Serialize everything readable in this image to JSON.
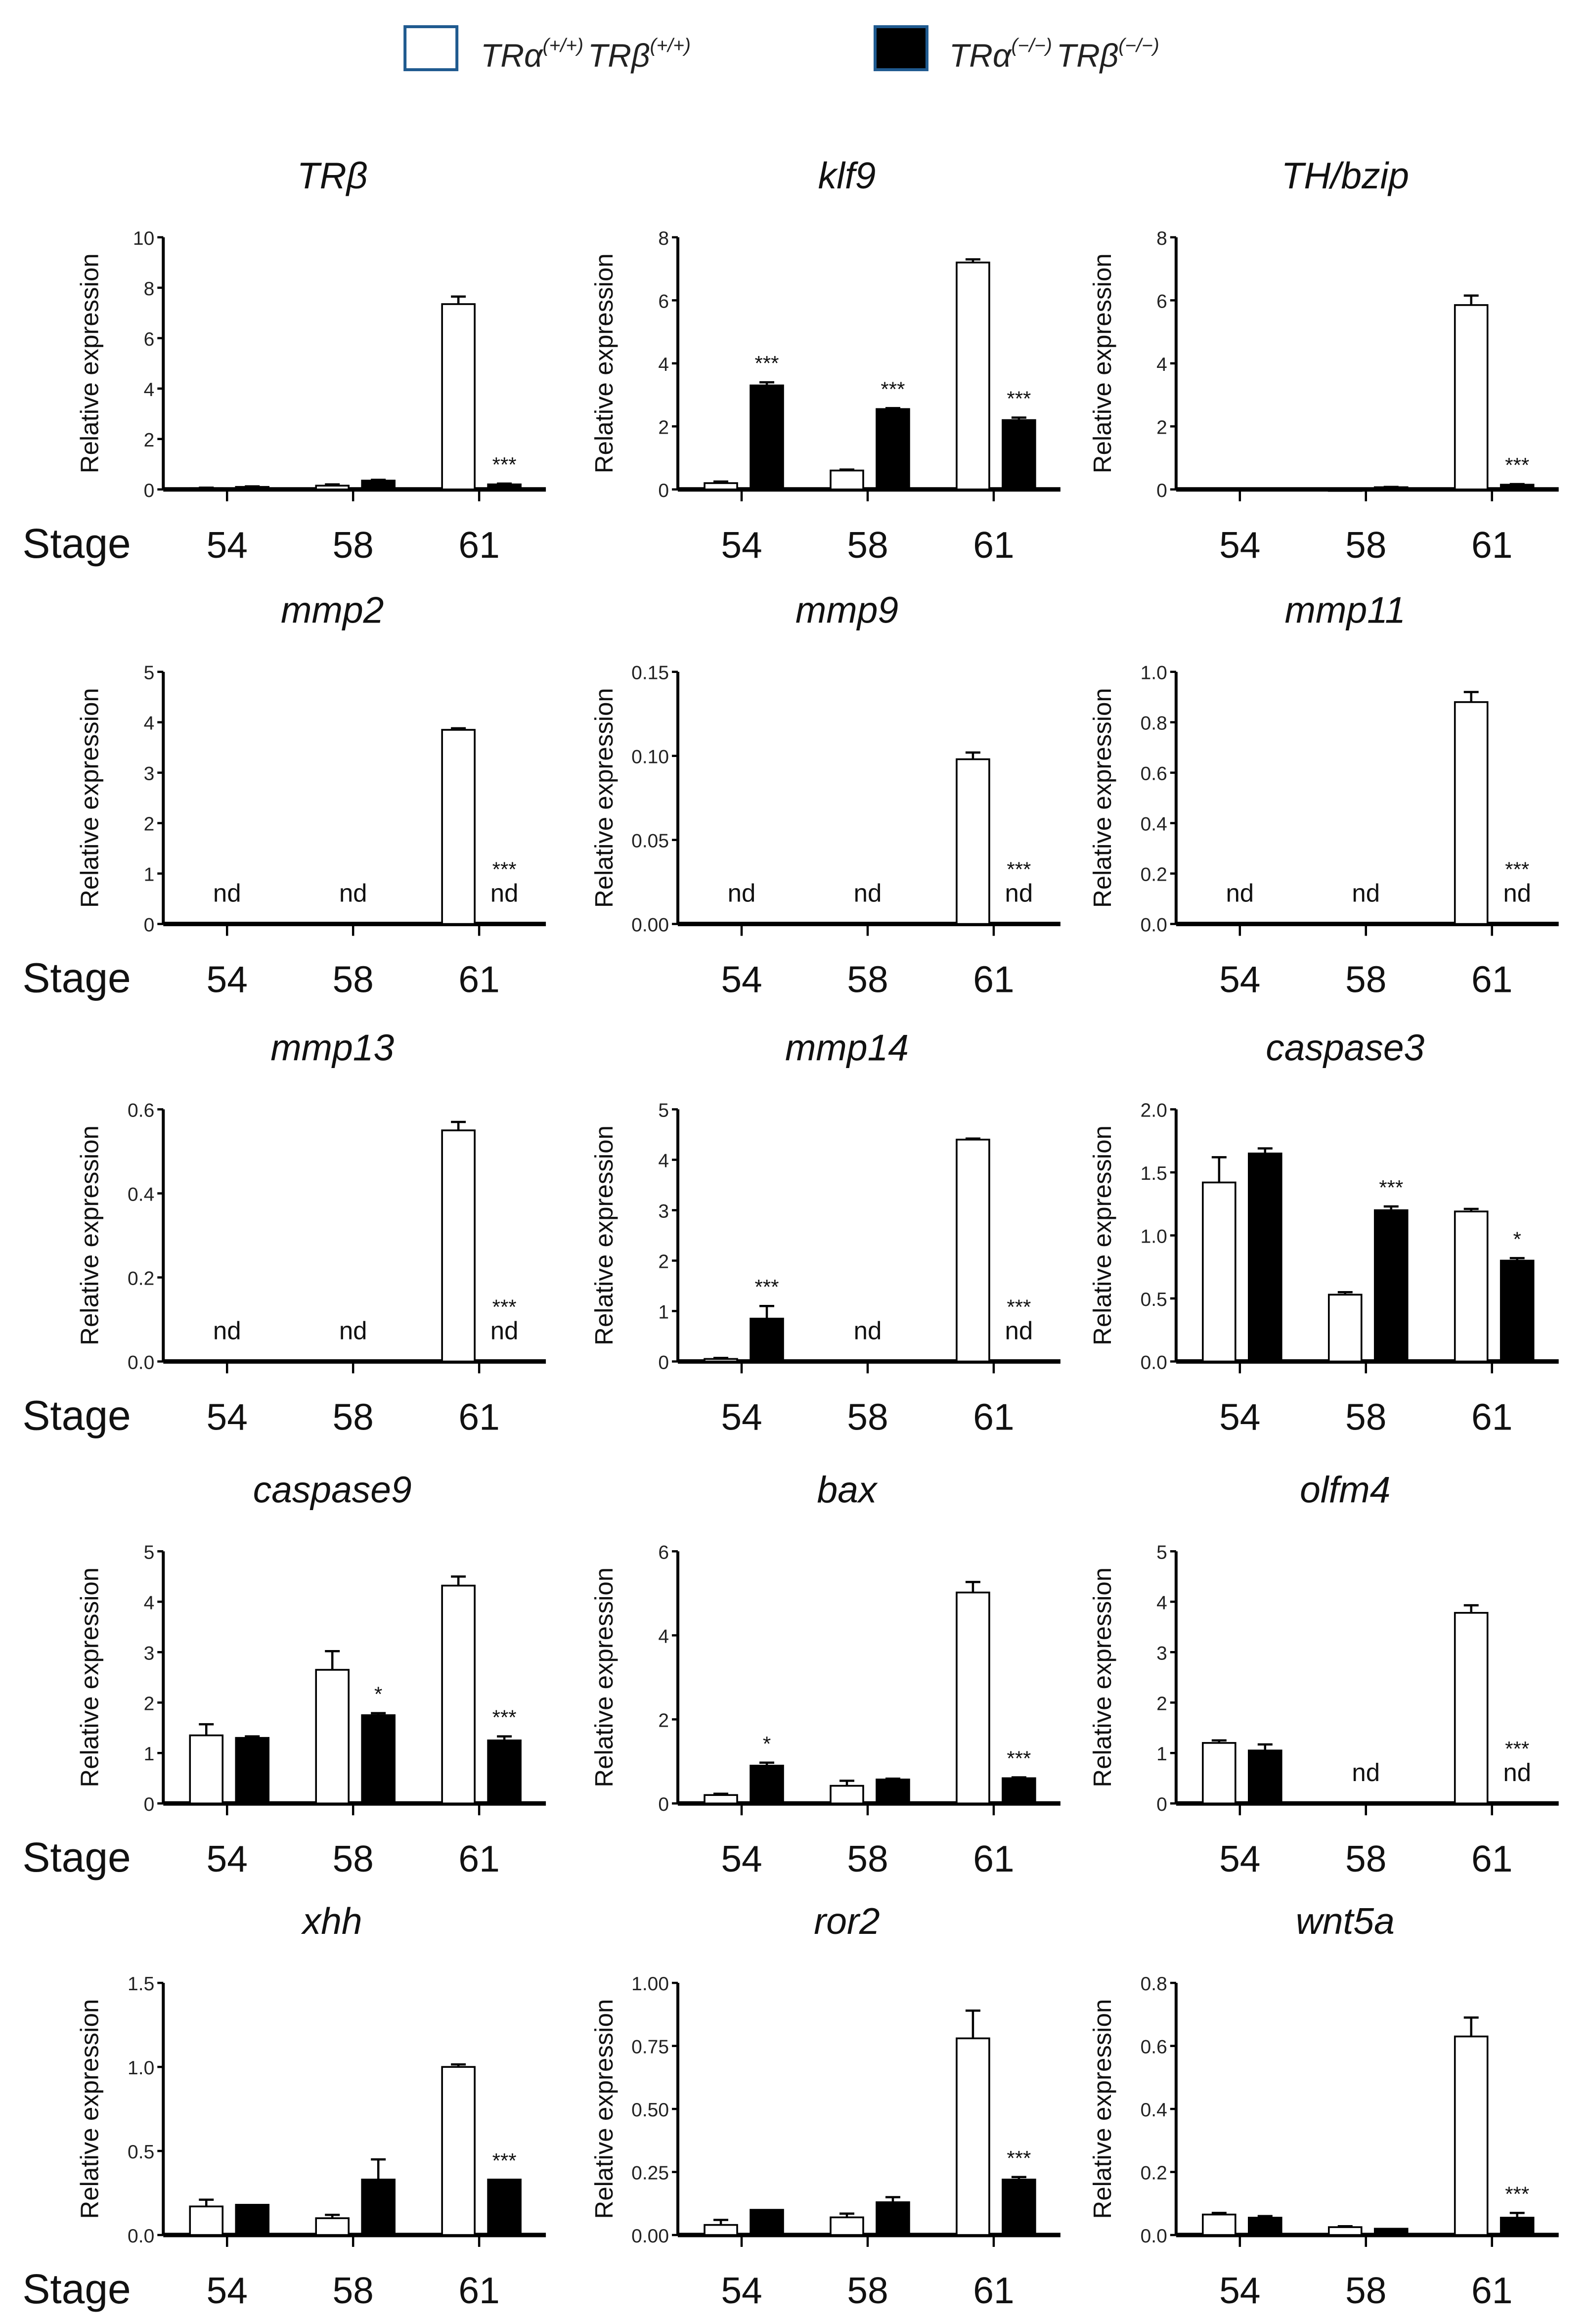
{
  "legend": [
    {
      "base1": "TRα",
      "sup1": "(+/+)",
      "base2": "TRβ",
      "sup2": "(+/+)",
      "fill": "#ffffff",
      "border": "#1f5a8f"
    },
    {
      "base1": "TRα",
      "sup1": "(−/−)",
      "base2": "TRβ",
      "sup2": "(−/−)",
      "fill": "#000000",
      "border": "#1f5a8f"
    }
  ],
  "stage_label": "Stage",
  "nd_label": "nd",
  "chart_data": [
    {
      "type": "bar",
      "title": "TRβ",
      "ylabel": "Relative expression",
      "categories": [
        "54",
        "58",
        "61"
      ],
      "ylim": [
        0,
        10
      ],
      "ticks": [
        "0",
        "2",
        "4",
        "6",
        "8",
        "10"
      ],
      "show_stage": true,
      "series": [
        {
          "name": "TRα(+/+) TRβ(+/+)",
          "values": [
            0.05,
            0.15,
            7.35
          ],
          "err": [
            0.02,
            0.05,
            0.3
          ]
        },
        {
          "name": "TRα(−/−) TRβ(−/−)",
          "values": [
            0.1,
            0.35,
            0.2
          ],
          "err": [
            0.02,
            0.03,
            0.03
          ]
        }
      ],
      "significance": [
        null,
        null,
        "***"
      ]
    },
    {
      "type": "bar",
      "title": "klf9",
      "ylabel": "Relative expression",
      "categories": [
        "54",
        "58",
        "61"
      ],
      "ylim": [
        0,
        8
      ],
      "ticks": [
        "0",
        "2",
        "4",
        "6",
        "8"
      ],
      "show_stage": false,
      "series": [
        {
          "name": "TRα(+/+) TRβ(+/+)",
          "values": [
            0.2,
            0.6,
            7.2
          ],
          "err": [
            0.05,
            0.03,
            0.1
          ]
        },
        {
          "name": "TRα(−/−) TRβ(−/−)",
          "values": [
            3.3,
            2.55,
            2.2
          ],
          "err": [
            0.1,
            0.03,
            0.08
          ]
        }
      ],
      "significance": [
        "***",
        "***",
        "***"
      ]
    },
    {
      "type": "bar",
      "title": "TH/bzip",
      "ylabel": "Relative expression",
      "categories": [
        "54",
        "58",
        "61"
      ],
      "ylim": [
        0,
        8
      ],
      "ticks": [
        "0",
        "2",
        "4",
        "6",
        "8"
      ],
      "show_stage": false,
      "series": [
        {
          "name": "TRα(+/+) TRβ(+/+)",
          "values": [
            0.02,
            0.0,
            5.85
          ],
          "err": [
            0,
            0,
            0.3
          ]
        },
        {
          "name": "TRα(−/−) TRβ(−/−)",
          "values": [
            0.02,
            0.07,
            0.15
          ],
          "err": [
            0,
            0.01,
            0.02
          ]
        }
      ],
      "significance": [
        null,
        null,
        "***"
      ]
    },
    {
      "type": "bar",
      "title": "mmp2",
      "ylabel": "Relative expression",
      "categories": [
        "54",
        "58",
        "61"
      ],
      "ylim": [
        0,
        5
      ],
      "ticks": [
        "0",
        "1",
        "2",
        "3",
        "4",
        "5"
      ],
      "show_stage": true,
      "series": [
        {
          "name": "TRα(+/+) TRβ(+/+)",
          "values": [
            null,
            null,
            3.85
          ],
          "err": [
            0,
            0,
            0.03
          ]
        },
        {
          "name": "TRα(−/−) TRβ(−/−)",
          "values": [
            null,
            null,
            null
          ],
          "err": [
            0,
            0,
            0
          ]
        }
      ],
      "significance": [
        null,
        null,
        "***"
      ]
    },
    {
      "type": "bar",
      "title": "mmp9",
      "ylabel": "Relative expression",
      "categories": [
        "54",
        "58",
        "61"
      ],
      "ylim": [
        0,
        0.15
      ],
      "ticks": [
        "0.00",
        "0.05",
        "0.10",
        "0.15"
      ],
      "show_stage": false,
      "series": [
        {
          "name": "TRα(+/+) TRβ(+/+)",
          "values": [
            null,
            null,
            0.098
          ],
          "err": [
            0,
            0,
            0.004
          ]
        },
        {
          "name": "TRα(−/−) TRβ(−/−)",
          "values": [
            null,
            null,
            null
          ],
          "err": [
            0,
            0,
            0
          ]
        }
      ],
      "significance": [
        null,
        null,
        "***"
      ]
    },
    {
      "type": "bar",
      "title": "mmp11",
      "ylabel": "Relative expression",
      "categories": [
        "54",
        "58",
        "61"
      ],
      "ylim": [
        0,
        1.0
      ],
      "ticks": [
        "0.0",
        "0.2",
        "0.4",
        "0.6",
        "0.8",
        "1.0"
      ],
      "show_stage": false,
      "series": [
        {
          "name": "TRα(+/+) TRβ(+/+)",
          "values": [
            null,
            null,
            0.88
          ],
          "err": [
            0,
            0,
            0.04
          ]
        },
        {
          "name": "TRα(−/−) TRβ(−/−)",
          "values": [
            null,
            null,
            null
          ],
          "err": [
            0,
            0,
            0
          ]
        }
      ],
      "significance": [
        null,
        null,
        "***"
      ]
    },
    {
      "type": "bar",
      "title": "mmp13",
      "ylabel": "Relative expression",
      "categories": [
        "54",
        "58",
        "61"
      ],
      "ylim": [
        0,
        0.6
      ],
      "ticks": [
        "0.0",
        "0.2",
        "0.4",
        "0.6"
      ],
      "show_stage": true,
      "series": [
        {
          "name": "TRα(+/+) TRβ(+/+)",
          "values": [
            null,
            null,
            0.55
          ],
          "err": [
            0,
            0,
            0.02
          ]
        },
        {
          "name": "TRα(−/−) TRβ(−/−)",
          "values": [
            null,
            null,
            null
          ],
          "err": [
            0,
            0,
            0
          ]
        }
      ],
      "significance": [
        null,
        null,
        "***"
      ]
    },
    {
      "type": "bar",
      "title": "mmp14",
      "ylabel": "Relative expression",
      "categories": [
        "54",
        "58",
        "61"
      ],
      "ylim": [
        0,
        5
      ],
      "ticks": [
        "0",
        "1",
        "2",
        "3",
        "4",
        "5"
      ],
      "show_stage": false,
      "series": [
        {
          "name": "TRα(+/+) TRβ(+/+)",
          "values": [
            0.05,
            null,
            4.4
          ],
          "err": [
            0.02,
            0,
            0.02
          ]
        },
        {
          "name": "TRα(−/−) TRβ(−/−)",
          "values": [
            0.85,
            null,
            null
          ],
          "err": [
            0.25,
            0,
            0
          ]
        }
      ],
      "significance": [
        "***",
        null,
        "***"
      ]
    },
    {
      "type": "bar",
      "title": "caspase3",
      "ylabel": "Relative expression",
      "categories": [
        "54",
        "58",
        "61"
      ],
      "ylim": [
        0,
        2.0
      ],
      "ticks": [
        "0.0",
        "0.5",
        "1.0",
        "1.5",
        "2.0"
      ],
      "show_stage": false,
      "series": [
        {
          "name": "TRα(+/+) TRβ(+/+)",
          "values": [
            1.42,
            0.53,
            1.19
          ],
          "err": [
            0.2,
            0.02,
            0.02
          ]
        },
        {
          "name": "TRα(−/−) TRβ(−/−)",
          "values": [
            1.65,
            1.2,
            0.8
          ],
          "err": [
            0.04,
            0.03,
            0.02
          ]
        }
      ],
      "significance": [
        null,
        "***",
        "*"
      ]
    },
    {
      "type": "bar",
      "title": "caspase9",
      "ylabel": "Relative expression",
      "categories": [
        "54",
        "58",
        "61"
      ],
      "ylim": [
        0,
        5
      ],
      "ticks": [
        "0",
        "1",
        "2",
        "3",
        "4",
        "5"
      ],
      "show_stage": true,
      "series": [
        {
          "name": "TRα(+/+) TRβ(+/+)",
          "values": [
            1.35,
            2.65,
            4.32
          ],
          "err": [
            0.22,
            0.37,
            0.18
          ]
        },
        {
          "name": "TRα(−/−) TRβ(−/−)",
          "values": [
            1.3,
            1.75,
            1.25
          ],
          "err": [
            0.03,
            0.04,
            0.08
          ]
        }
      ],
      "significance": [
        null,
        "*",
        "***"
      ]
    },
    {
      "type": "bar",
      "title": "bax",
      "ylabel": "Relative expression",
      "categories": [
        "54",
        "58",
        "61"
      ],
      "ylim": [
        0,
        6
      ],
      "ticks": [
        "0",
        "2",
        "4",
        "6"
      ],
      "show_stage": false,
      "series": [
        {
          "name": "TRα(+/+) TRβ(+/+)",
          "values": [
            0.2,
            0.42,
            5.02
          ],
          "err": [
            0.03,
            0.12,
            0.25
          ]
        },
        {
          "name": "TRα(−/−) TRβ(−/−)",
          "values": [
            0.9,
            0.57,
            0.6
          ],
          "err": [
            0.07,
            0.02,
            0.02
          ]
        }
      ],
      "significance": [
        "*",
        null,
        "***"
      ]
    },
    {
      "type": "bar",
      "title": "olfm4",
      "ylabel": "Relative expression",
      "categories": [
        "54",
        "58",
        "61"
      ],
      "ylim": [
        0,
        5
      ],
      "ticks": [
        "0",
        "1",
        "2",
        "3",
        "4",
        "5"
      ],
      "show_stage": false,
      "series": [
        {
          "name": "TRα(+/+) TRβ(+/+)",
          "values": [
            1.2,
            null,
            3.78
          ],
          "err": [
            0.05,
            0,
            0.15
          ]
        },
        {
          "name": "TRα(−/−) TRβ(−/−)",
          "values": [
            1.05,
            null,
            null
          ],
          "err": [
            0.12,
            0,
            0
          ]
        }
      ],
      "significance": [
        null,
        null,
        "***"
      ]
    },
    {
      "type": "bar",
      "title": "xhh",
      "ylabel": "Relative expression",
      "categories": [
        "54",
        "58",
        "61"
      ],
      "ylim": [
        0,
        1.5
      ],
      "ticks": [
        "0.0",
        "0.5",
        "1.0",
        "1.5"
      ],
      "show_stage": true,
      "series": [
        {
          "name": "TRα(+/+) TRβ(+/+)",
          "values": [
            0.17,
            0.1,
            1.0
          ],
          "err": [
            0.04,
            0.02,
            0.015
          ]
        },
        {
          "name": "TRα(−/−) TRβ(−/−)",
          "values": [
            0.18,
            0.33,
            0.33
          ],
          "err": [
            0,
            0.12,
            0
          ]
        }
      ],
      "significance": [
        null,
        null,
        "***"
      ]
    },
    {
      "type": "bar",
      "title": "ror2",
      "ylabel": "Relative expression",
      "categories": [
        "54",
        "58",
        "61"
      ],
      "ylim": [
        0,
        1.0
      ],
      "ticks": [
        "0.00",
        "0.25",
        "0.50",
        "0.75",
        "1.00"
      ],
      "show_stage": false,
      "series": [
        {
          "name": "TRα(+/+) TRβ(+/+)",
          "values": [
            0.04,
            0.07,
            0.78
          ],
          "err": [
            0.02,
            0.015,
            0.11
          ]
        },
        {
          "name": "TRα(−/−) TRβ(−/−)",
          "values": [
            0.1,
            0.13,
            0.22
          ],
          "err": [
            0,
            0.02,
            0.01
          ]
        }
      ],
      "significance": [
        null,
        null,
        "***"
      ]
    },
    {
      "type": "bar",
      "title": "wnt5a",
      "ylabel": "Relative expression",
      "categories": [
        "54",
        "58",
        "61"
      ],
      "ylim": [
        0,
        0.8
      ],
      "ticks": [
        "0.0",
        "0.2",
        "0.4",
        "0.6",
        "0.8"
      ],
      "show_stage": false,
      "series": [
        {
          "name": "TRα(+/+) TRβ(+/+)",
          "values": [
            0.065,
            0.025,
            0.63
          ],
          "err": [
            0.005,
            0.003,
            0.06
          ]
        },
        {
          "name": "TRα(−/−) TRβ(−/−)",
          "values": [
            0.055,
            0.02,
            0.055
          ],
          "err": [
            0.005,
            0,
            0.015
          ]
        }
      ],
      "significance": [
        null,
        null,
        "***"
      ]
    }
  ]
}
